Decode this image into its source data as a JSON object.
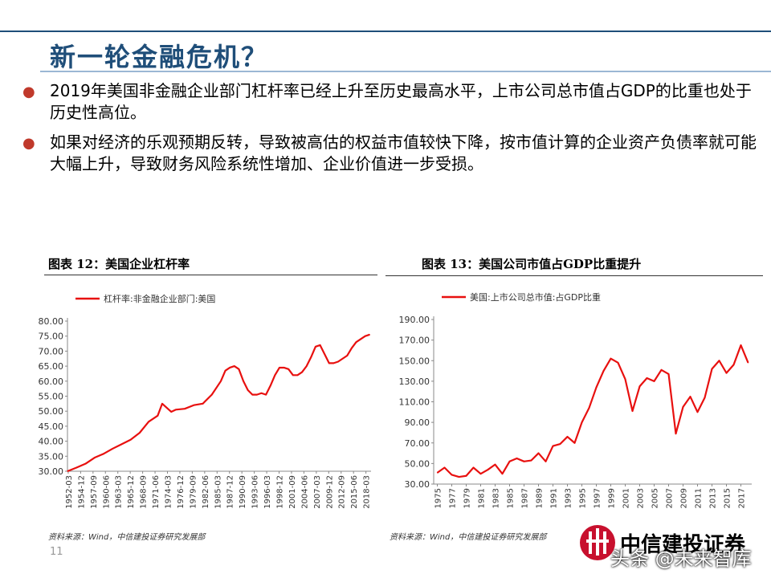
{
  "page": {
    "title": "新一轮金融危机？",
    "bullets": [
      "2019年美国非金融企业部门杠杆率已经上升至历史最高水平，上市公司总市值占GDP的比重也处于历史性高位。",
      "如果对经济的乐观预期反转，导致被高估的权益市值较快下降，按市值计算的企业资产负债率就可能大幅上升，导致财务风险系统性增加、企业价值进一步受损。"
    ],
    "page_number": "11",
    "logo_text": "中信建投证券",
    "watermark": "头条 @未来智库",
    "colors": {
      "title": "#1f4e79",
      "series": "#e8100f",
      "bullet": "#c0392b"
    }
  },
  "charts": {
    "left": {
      "caption": "图表 12：美国企业杠杆率",
      "legend": "杠杆率:非金融企业部门:美国",
      "source": "资料来源：Wind，中信建投证券研究发展部",
      "y_tick_labels": [
        "30.00",
        "35.00",
        "40.00",
        "45.00",
        "50.00",
        "55.00",
        "60.00",
        "65.00",
        "70.00",
        "75.00",
        "80.00"
      ],
      "x_tick_labels": [
        "1952-03",
        "1954-12",
        "1957-09",
        "1960-06",
        "1963-03",
        "1965-12",
        "1968-09",
        "1971-06",
        "1974-03",
        "1976-12",
        "1979-09",
        "1982-06",
        "1985-03",
        "1987-12",
        "1990-09",
        "1993-06",
        "1996-03",
        "1998-12",
        "2001-09",
        "2004-06",
        "2007-03",
        "2009-12",
        "2012-09",
        "2015-06",
        "2018-03"
      ]
    },
    "right": {
      "caption": "图表 13：美国公司市值占GDP比重提升",
      "legend": "美国:上市公司总市值:占GDP比重",
      "source": "资料来源：Wind，中信建投证券研究发展部",
      "y_tick_labels": [
        "30.00",
        "50.00",
        "70.00",
        "90.00",
        "110.00",
        "130.00",
        "150.00",
        "170.00",
        "190.00"
      ],
      "x_tick_labels": [
        "1975",
        "1977",
        "1979",
        "1981",
        "1983",
        "1985",
        "1987",
        "1989",
        "1991",
        "1993",
        "1995",
        "1997",
        "1999",
        "2001",
        "2003",
        "2005",
        "2007",
        "2009",
        "2011",
        "2013",
        "2015",
        "2017"
      ]
    }
  },
  "chart_data": [
    {
      "type": "line",
      "series": [
        {
          "name": "杠杆率:非金融企业部门:美国",
          "x": [
            "1952",
            "1954",
            "1956",
            "1958",
            "1960",
            "1962",
            "1964",
            "1966",
            "1968",
            "1970",
            "1972",
            "1973",
            "1975",
            "1976",
            "1978",
            "1980",
            "1982",
            "1984",
            "1986",
            "1987",
            "1988",
            "1989",
            "1990",
            "1991",
            "1992",
            "1993",
            "1994",
            "1995",
            "1996",
            "1997",
            "1998",
            "1999",
            "2000",
            "2001",
            "2002",
            "2003",
            "2004",
            "2005",
            "2006",
            "2007",
            "2008",
            "2009",
            "2010",
            "2011",
            "2012",
            "2013",
            "2014",
            "2015",
            "2016",
            "2017",
            "2018",
            "2019"
          ],
          "values": [
            30.0,
            31.2,
            32.5,
            34.5,
            35.8,
            37.5,
            39.0,
            40.5,
            42.8,
            46.5,
            48.5,
            52.5,
            49.8,
            50.5,
            50.8,
            52.0,
            52.5,
            55.5,
            60.0,
            63.5,
            64.5,
            65.0,
            64.0,
            60.0,
            57.0,
            55.5,
            55.5,
            56.0,
            55.5,
            58.5,
            62.0,
            64.5,
            64.5,
            64.0,
            62.0,
            62.0,
            63.0,
            65.0,
            68.0,
            71.5,
            72.0,
            69.0,
            66.0,
            66.0,
            66.5,
            67.5,
            68.5,
            71.0,
            73.0,
            74.0,
            75.0,
            75.5
          ]
        }
      ],
      "xlim": [
        "1952-03",
        "2019"
      ],
      "ylim": [
        30,
        80
      ],
      "legend_position": "top-left",
      "grid": false
    },
    {
      "type": "line",
      "series": [
        {
          "name": "美国:上市公司总市值:占GDP比重",
          "x": [
            1975,
            1976,
            1977,
            1978,
            1979,
            1980,
            1981,
            1982,
            1983,
            1984,
            1985,
            1986,
            1987,
            1988,
            1989,
            1990,
            1991,
            1992,
            1993,
            1994,
            1995,
            1996,
            1997,
            1998,
            1999,
            2000,
            2001,
            2002,
            2003,
            2004,
            2005,
            2006,
            2007,
            2008,
            2009,
            2010,
            2011,
            2012,
            2013,
            2014,
            2015,
            2016,
            2017,
            2018
          ],
          "values": [
            41,
            46,
            39,
            37,
            38,
            46,
            40,
            44,
            49,
            40,
            52,
            55,
            52,
            53,
            60,
            52,
            67,
            69,
            76,
            70,
            90,
            104,
            124,
            140,
            152,
            148,
            132,
            101,
            125,
            133,
            130,
            141,
            137,
            79,
            105,
            115,
            100,
            114,
            142,
            150,
            138,
            146,
            165,
            148
          ]
        }
      ],
      "xlim": [
        1974.5,
        2018.5
      ],
      "ylim": [
        30,
        190
      ],
      "legend_position": "top-left",
      "grid": false
    }
  ]
}
